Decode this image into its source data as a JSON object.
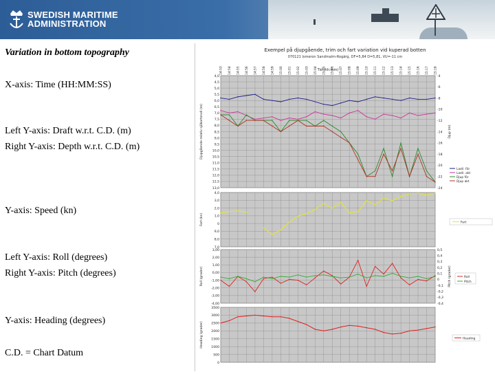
{
  "header": {
    "logo_line1": "SWEDISH MARITIME",
    "logo_line2": "ADMINISTRATION",
    "logo_icon": "crown-anchor-icon"
  },
  "notes": {
    "title": "Variation in bottom topography",
    "x_axis": "X-axis: Time (HH:MM:SS)",
    "left_y_draft": "Left Y-axis: Draft w.r.t. C.D. (m)",
    "right_y_depth": "Right Y-axis: Depth w.r.t. C.D. (m)",
    "speed_axis": "Y-axis: Speed (kn)",
    "left_y_roll": "Left Y-axis: Roll (degrees)",
    "right_y_pitch": "Right Y-axis: Pitch (degrees)",
    "heading_axis": "Y-axis: Heading (degrees)",
    "chart_datum": "C.D. = Chart Datum"
  },
  "colors": {
    "plot_bg": "#c8c8c8",
    "grid": "#8c8c8c",
    "draft_aft": "#1a1a8c",
    "draft_fwd": "#cc3399",
    "depth_fwd": "#2a8a2a",
    "depth_aft": "#b03020",
    "speed": "#e6e62a",
    "roll": "#e02020",
    "pitch": "#33aa33",
    "heading": "#e02020"
  },
  "chart_data": [
    {
      "type": "line",
      "title": "Exempel på djupgående, trim och fart variation vid kuperad botten",
      "subtitle": "070121 Ismeron Sandmalm-Rogärg, DF=5,84 D=5,81, VU=-11 cm",
      "xlabel": "Tid (hh:mm)",
      "ylabel": "Djupgående relativ sjökortsnoll (m)",
      "ylabel_right": "Djup (m)",
      "x_ticks": [
        "14:53",
        "14:54",
        "14:55",
        "14:56",
        "14:57",
        "14:58",
        "14:59",
        "15:00",
        "15:01",
        "15:02",
        "15:03",
        "15:04",
        "15:05",
        "15:06",
        "15:07",
        "15:08",
        "15:09",
        "15:10",
        "15:11",
        "15:12",
        "15:13",
        "15:14",
        "15:15",
        "15:16",
        "15:17",
        "15:18"
      ],
      "y_ticks": [
        "4,0",
        "4,5",
        "5,0",
        "5,5",
        "6,0",
        "6,5",
        "7,0",
        "7,5",
        "8,0",
        "8,5",
        "9,0",
        "9,5",
        "10,0",
        "10,5",
        "11,0",
        "11,5",
        "12,0",
        "12,5",
        "13,0"
      ],
      "ylim": [
        4.0,
        13.0
      ],
      "y2_ticks": [
        "-4",
        "-6",
        "-8",
        "-10",
        "-12",
        "-14",
        "-16",
        "-18",
        "-20",
        "-22",
        "-24"
      ],
      "y2lim": [
        -4,
        -24
      ],
      "series": [
        {
          "name": "Lastl. för",
          "axis": "left",
          "values": [
            5.8,
            5.9,
            5.7,
            5.6,
            5.5,
            5.9,
            6.0,
            6.1,
            5.9,
            5.8,
            5.9,
            6.1,
            6.3,
            6.4,
            6.2,
            6.0,
            6.1,
            5.9,
            5.7,
            5.8,
            5.9,
            6.0,
            5.8,
            5.9,
            5.9,
            5.8
          ]
        },
        {
          "name": "Lastl. akt",
          "axis": "left",
          "values": [
            6.8,
            7.0,
            6.9,
            7.2,
            7.5,
            7.4,
            7.3,
            7.6,
            7.4,
            7.5,
            7.3,
            6.9,
            7.1,
            7.2,
            7.4,
            7.0,
            6.8,
            7.3,
            7.5,
            7.1,
            7.2,
            7.4,
            7.0,
            7.2,
            7.1,
            7.0
          ]
        },
        {
          "name": "Djup för",
          "axis": "right",
          "values": [
            -11,
            -11,
            -13,
            -11,
            -12,
            -12,
            -12,
            -14,
            -12,
            -12,
            -12,
            -13,
            -12,
            -13,
            -14,
            -16,
            -18,
            -22,
            -21,
            -17,
            -22,
            -16,
            -22,
            -17,
            -21,
            -23
          ]
        },
        {
          "name": "Djup akt",
          "axis": "right",
          "values": [
            -11,
            -12,
            -13,
            -12,
            -12,
            -12,
            -13,
            -14,
            -13,
            -12,
            -13,
            -13,
            -13,
            -14,
            -15,
            -16,
            -19,
            -22,
            -22,
            -18,
            -21,
            -17,
            -22,
            -18,
            -22,
            -23
          ]
        }
      ]
    },
    {
      "type": "line",
      "ylabel": "Fart (kn)",
      "y_ticks": [
        "4,0",
        "3,0",
        "2,0",
        "1,0",
        "0",
        "9,0",
        "8,0",
        "7,0"
      ],
      "series": [
        {
          "name": "Fart",
          "values": [
            1.0,
            1.2,
            1.3,
            1.1,
            null,
            -1.2,
            -2.2,
            -1.5,
            -0.4,
            0.5,
            0.9,
            1.5,
            2.4,
            1.7,
            2.5,
            1.0,
            1.2,
            2.8,
            2.2,
            3.2,
            2.8,
            3.4,
            3.8,
            3.9,
            3.6,
            3.9
          ]
        }
      ]
    },
    {
      "type": "line",
      "ylabel": "Roll (grader)",
      "ylabel_right": "Pitch (grader)",
      "y_ticks": [
        "3,00",
        "2,00",
        "1,00",
        "0,00",
        "-1,00",
        "-2,00",
        "-3,00",
        "-4,00"
      ],
      "y2_ticks": [
        "0,5",
        "0,4",
        "0,3",
        "0,2",
        "0,1",
        "0",
        "-0,1",
        "-0,2",
        "-0,3",
        "-0,4"
      ],
      "series": [
        {
          "name": "Roll",
          "values": [
            -1.0,
            -1.8,
            -0.5,
            -1.2,
            -2.5,
            -0.8,
            -0.6,
            -1.4,
            -0.9,
            -1.0,
            -1.6,
            -0.7,
            0.2,
            -0.4,
            -1.5,
            -0.6,
            1.6,
            -1.8,
            0.8,
            -0.2,
            1.2,
            -0.7,
            -1.6,
            -0.9,
            -1.1,
            -0.4
          ]
        },
        {
          "name": "Pitch",
          "values": [
            -0.6,
            -0.8,
            -0.5,
            -0.8,
            -1.2,
            -0.6,
            -0.8,
            -0.5,
            -0.6,
            -0.3,
            -0.6,
            -0.4,
            -0.3,
            -0.5,
            -0.7,
            -0.6,
            -0.2,
            -0.7,
            -0.4,
            -0.5,
            -0.1,
            -0.5,
            -0.7,
            -0.5,
            -0.8,
            -0.5
          ]
        }
      ]
    },
    {
      "type": "line",
      "ylabel": "Heading (grader)",
      "y_ticks": [
        "3500",
        "3000",
        "2500",
        "2000",
        "1500",
        "1000",
        "500",
        "0"
      ],
      "series": [
        {
          "name": "Heading",
          "values": [
            2500,
            2650,
            2900,
            2950,
            3000,
            2950,
            2900,
            2900,
            2800,
            2600,
            2400,
            2100,
            2000,
            2100,
            2250,
            2350,
            2300,
            2200,
            2100,
            1900,
            1800,
            1850,
            2000,
            2050,
            2150,
            2250
          ]
        }
      ]
    }
  ]
}
